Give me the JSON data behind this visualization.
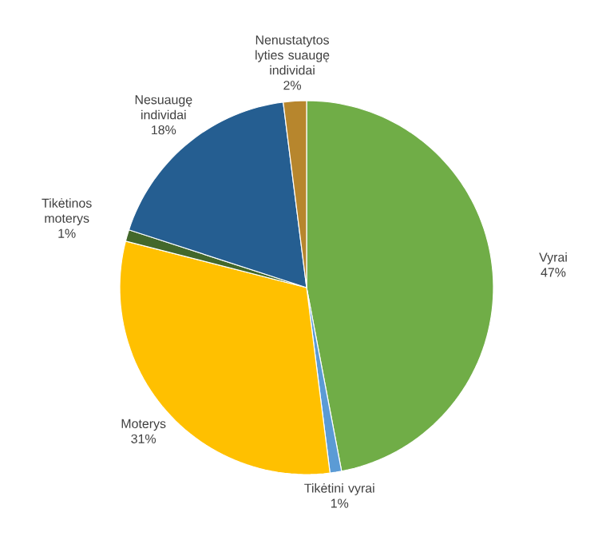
{
  "chart_data": {
    "type": "pie",
    "categories": [
      "Vyrai",
      "Tikėtini vyrai",
      "Moterys",
      "Tikėtinos moterys",
      "Nesuaugę individai",
      "Nenustatytos lyties suaugę individai"
    ],
    "values": [
      47,
      1,
      31,
      1,
      18,
      2
    ],
    "value_labels": [
      "47%",
      "1%",
      "31%",
      "1%",
      "18%",
      "2%"
    ],
    "colors": [
      "#70ad47",
      "#5b9bd5",
      "#ffc000",
      "#43682b",
      "#255e91",
      "#b7862d"
    ]
  }
}
